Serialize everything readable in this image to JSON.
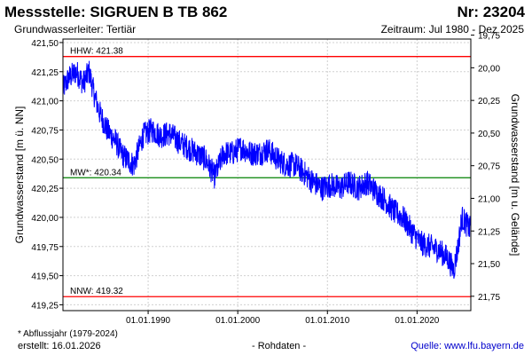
{
  "header": {
    "title": "Messstelle: SIGRUEN B TB 862",
    "number": "Nr: 23204",
    "aquifer": "Grundwasserleiter: Tertiär",
    "period": "Zeitraum: Jul 1980 - Dez 2025"
  },
  "footer": {
    "footnote": "* Abflussjahr (1979-2024)",
    "created": "erstellt:  16.01.2026",
    "data_type": "- Rohdaten -",
    "source": "Quelle:  www.lfu.bayern.de"
  },
  "colors": {
    "series": "#0000ff",
    "extreme_lines": "#ff0000",
    "mean_line": "#008000",
    "grid": "#d0d0d0"
  },
  "chart_data": {
    "type": "line",
    "title": "",
    "xlabel": "",
    "ylabel": "Grundwasserstand [m ü. NN]",
    "y2label": "Grundwasserstand [m u. Gelände]",
    "xlim": [
      "1980-07-01",
      "2025-12-31"
    ],
    "ylim": [
      419.2,
      421.53
    ],
    "y2lim": [
      19.78,
      21.86
    ],
    "x_ticks": [
      "01.01.1990",
      "01.01.2000",
      "01.01.2010",
      "01.01.2020"
    ],
    "y_ticks": [
      "421,50",
      "421,25",
      "421,00",
      "420,75",
      "420,50",
      "420,25",
      "420,00",
      "419,75",
      "419,50",
      "419,25"
    ],
    "y2_ticks": [
      "19,75",
      "20,00",
      "20,25",
      "20,50",
      "20,75",
      "21,00",
      "21,25",
      "21,50",
      "21,75"
    ],
    "grid": true,
    "reference_lines": [
      {
        "name": "HHW",
        "label": "HHW: 421.38",
        "value": 421.38
      },
      {
        "name": "MW*",
        "label": "MW*: 420.34",
        "value": 420.34
      },
      {
        "name": "NNW",
        "label": "NNW: 419.32",
        "value": 419.32
      }
    ],
    "series": [
      {
        "x": [
          "1980-07",
          "1981-03",
          "1982-01",
          "1982-10",
          "1983-06",
          "1984-01",
          "1984-08",
          "1985-06",
          "1986-06",
          "1987-01",
          "1987-08",
          "1988-06",
          "1989-06",
          "1990-06",
          "1991-06",
          "1992-06",
          "1993-06",
          "1994-06",
          "1995-06",
          "1996-06",
          "1997-06",
          "1998-06",
          "1999-06",
          "2000-06",
          "2001-06",
          "2002-06",
          "2003-06",
          "2004-06",
          "2005-06",
          "2006-06",
          "2007-06",
          "2008-06",
          "2009-06",
          "2010-06",
          "2011-06",
          "2012-06",
          "2013-06",
          "2014-06",
          "2015-06",
          "2016-06",
          "2017-06",
          "2018-06",
          "2019-06",
          "2020-06",
          "2021-06",
          "2022-06",
          "2023-06",
          "2024-02",
          "2024-08",
          "2025-01",
          "2025-06",
          "2025-12"
        ],
        "y": [
          421.1,
          421.2,
          421.25,
          421.15,
          421.25,
          421.05,
          420.9,
          420.75,
          420.65,
          420.55,
          420.5,
          420.45,
          420.7,
          420.75,
          420.7,
          420.72,
          420.65,
          420.6,
          420.55,
          420.5,
          420.35,
          420.55,
          420.55,
          420.6,
          420.55,
          420.55,
          420.58,
          420.5,
          420.45,
          420.45,
          420.38,
          420.3,
          420.25,
          420.28,
          420.25,
          420.3,
          420.25,
          420.3,
          420.22,
          420.15,
          420.05,
          420.0,
          419.88,
          419.78,
          419.75,
          419.72,
          419.65,
          419.55,
          419.75,
          420.0,
          419.95,
          419.9
        ]
      }
    ]
  }
}
